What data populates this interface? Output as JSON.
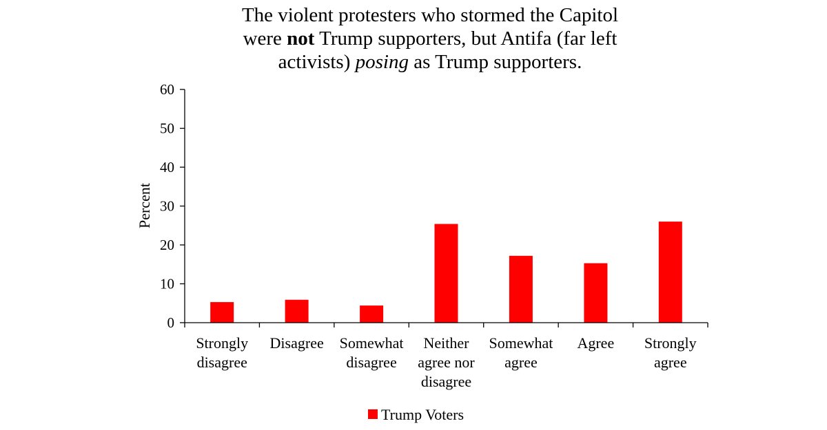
{
  "chart_data": {
    "type": "bar",
    "title": {
      "line1": "The violent protesters who stormed the Capitol",
      "line2_pre": "were ",
      "line2_bold": "not",
      "line2_post": " Trump supporters, but Antifa (far left",
      "line3_pre": "activists) ",
      "line3_italic": "posing",
      "line3_post": " as Trump supporters."
    },
    "ylabel": "Percent",
    "xlabel": "",
    "ylim": [
      0,
      60
    ],
    "yticks": [
      "0",
      "10",
      "20",
      "30",
      "40",
      "50",
      "60"
    ],
    "grid": false,
    "legend_position": "bottom",
    "categories": [
      [
        "Strongly",
        "disagree"
      ],
      [
        "Disagree"
      ],
      [
        "Somewhat",
        "disagree"
      ],
      [
        "Neither",
        "agree nor",
        "disagree"
      ],
      [
        "Somewhat",
        "agree"
      ],
      [
        "Agree"
      ],
      [
        "Strongly",
        "agree"
      ]
    ],
    "series": [
      {
        "name": "Trump Voters",
        "color": "#ff0000",
        "values": [
          5.3,
          5.9,
          4.4,
          25.4,
          17.2,
          15.3,
          26.0
        ]
      }
    ]
  }
}
